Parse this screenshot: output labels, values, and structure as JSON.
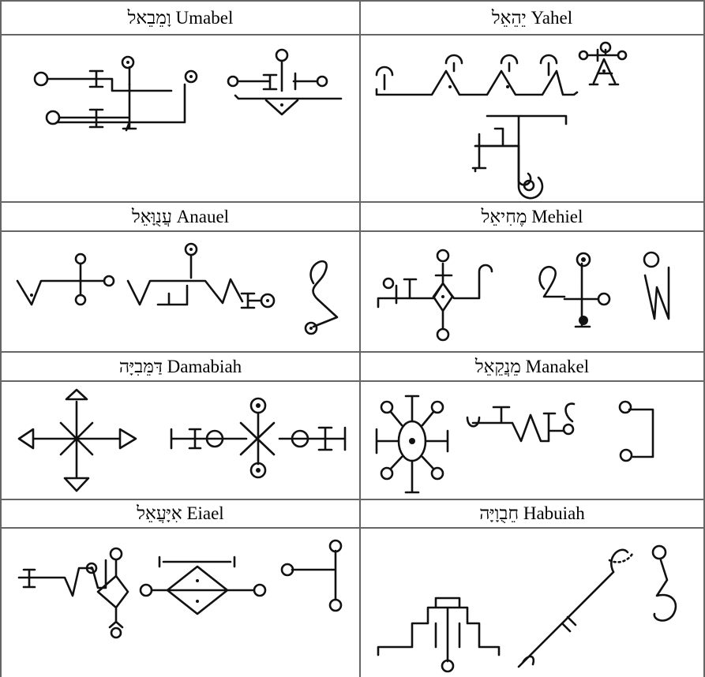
{
  "table": {
    "rows": [
      [
        "Umabel וָמֵבֵאל",
        "Yahel יֵהֵאֵל"
      ],
      [
        "Anauel עֲנֻוָּאֵל",
        "Mehiel מֶחִיאֵל"
      ],
      [
        "Damabiah דַּמֵּבִיָּה",
        "Manakel מֵנֲקֵאֵל"
      ],
      [
        "Eiael אִיָּעֲאֵל",
        "Habuiah חֵבֻוָיָּה"
      ]
    ]
  }
}
